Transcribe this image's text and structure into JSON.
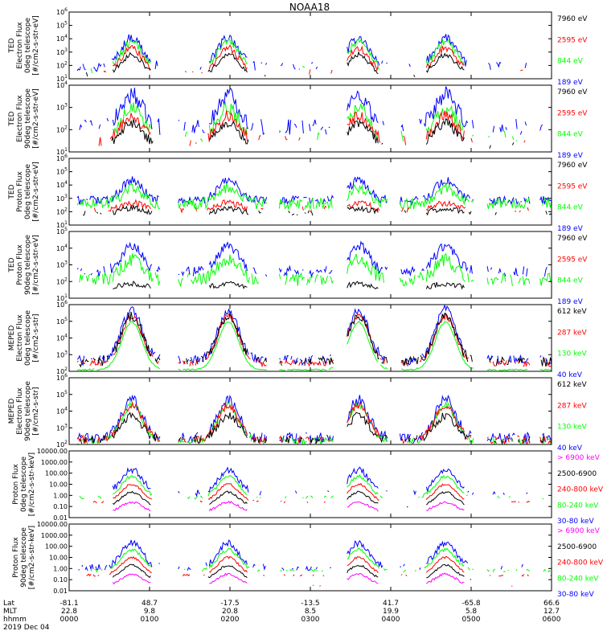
{
  "title": "NOAA18",
  "colors": {
    "black": "#000000",
    "red": "#ff0000",
    "green": "#00ff00",
    "blue": "#0000ff",
    "magenta": "#ff00ff"
  },
  "chart_data": [
    {
      "type": "line",
      "ylabel": [
        "TED",
        "Electron Flux",
        "0deg telescope",
        "[#/cm2-s-str-eV]"
      ],
      "y_ticks": [
        "10^1",
        "10^2",
        "10^3",
        "10^4",
        "10^5",
        "10^6"
      ],
      "ylim": [
        1,
        6
      ],
      "legend": [
        {
          "label": "7960 eV",
          "color": "#000000"
        },
        {
          "label": "2595 eV",
          "color": "#ff0000"
        },
        {
          "label": "844 eV",
          "color": "#00ff00"
        },
        {
          "label": "189 eV",
          "color": "#0000ff"
        }
      ],
      "series": [
        {
          "name": "189 eV",
          "color": "#0000ff",
          "base": 1.9,
          "amp": 2.2,
          "noise": 0.35,
          "fill": 0.32
        },
        {
          "name": "844 eV",
          "color": "#00ff00",
          "base": 1.7,
          "amp": 2.1,
          "noise": 0.3,
          "fill": 0.2
        },
        {
          "name": "2595 eV",
          "color": "#ff0000",
          "base": 1.5,
          "amp": 1.8,
          "noise": 0.25,
          "fill": 0.15
        },
        {
          "name": "7960 eV",
          "color": "#000000",
          "base": 1.3,
          "amp": 1.5,
          "noise": 0.2,
          "fill": 0.1
        }
      ]
    },
    {
      "type": "line",
      "ylabel": [
        "TED",
        "Electron Flux",
        "90deg telescope",
        "[#/cm2-s-str-eV]"
      ],
      "y_ticks": [
        "10^1",
        "10^2",
        "10^3",
        "10^4"
      ],
      "ylim": [
        1,
        4.5
      ],
      "legend": [
        {
          "label": "7960 eV",
          "color": "#000000"
        },
        {
          "label": "2595 eV",
          "color": "#ff0000"
        },
        {
          "label": "844 eV",
          "color": "#00ff00"
        },
        {
          "label": "189 eV",
          "color": "#0000ff"
        }
      ],
      "series": [
        {
          "name": "189 eV",
          "color": "#0000ff",
          "base": 2.3,
          "amp": 1.7,
          "noise": 0.45,
          "fill": 0.55
        },
        {
          "name": "844 eV",
          "color": "#00ff00",
          "base": 1.8,
          "amp": 1.5,
          "noise": 0.35,
          "fill": 0.25
        },
        {
          "name": "2595 eV",
          "color": "#ff0000",
          "base": 1.6,
          "amp": 1.3,
          "noise": 0.3,
          "fill": 0.2
        },
        {
          "name": "7960 eV",
          "color": "#000000",
          "base": 1.4,
          "amp": 1.1,
          "noise": 0.25,
          "fill": 0.18
        }
      ]
    },
    {
      "type": "line",
      "ylabel": [
        "TED",
        "Proton Flux",
        "0deg telescope",
        "[#/cm2-s-str-eV]"
      ],
      "y_ticks": [
        "10^1",
        "10^2",
        "10^3",
        "10^4",
        "10^5",
        "10^6"
      ],
      "ylim": [
        0,
        6
      ],
      "legend": [
        {
          "label": "7960 eV",
          "color": "#000000"
        },
        {
          "label": "2595 eV",
          "color": "#ff0000"
        },
        {
          "label": "844 eV",
          "color": "#00ff00"
        },
        {
          "label": "189 eV",
          "color": "#0000ff"
        }
      ],
      "series": [
        {
          "name": "189 eV",
          "color": "#0000ff",
          "base": 2.2,
          "amp": 1.8,
          "noise": 0.4,
          "fill": 0.9
        },
        {
          "name": "844 eV",
          "color": "#00ff00",
          "base": 1.9,
          "amp": 1.4,
          "noise": 0.5,
          "fill": 0.95
        },
        {
          "name": "2595 eV",
          "color": "#ff0000",
          "base": 1.4,
          "amp": 0.6,
          "noise": 0.3,
          "fill": 0.35
        },
        {
          "name": "7960 eV",
          "color": "#000000",
          "base": 1.1,
          "amp": 0.4,
          "noise": 0.25,
          "fill": 0.3
        }
      ]
    },
    {
      "type": "line",
      "ylabel": [
        "TED",
        "Proton Flux",
        "90deg telescope",
        "[#/cm2-s-str-eV]"
      ],
      "y_ticks": [
        "10^1",
        "10^2",
        "10^3",
        "10^4",
        "10^5"
      ],
      "ylim": [
        0,
        5
      ],
      "legend": [
        {
          "label": "7960 eV",
          "color": "#000000"
        },
        {
          "label": "2595 eV",
          "color": "#ff0000"
        },
        {
          "label": "844 eV",
          "color": "#00ff00"
        },
        {
          "label": "189 eV",
          "color": "#0000ff"
        }
      ],
      "series": [
        {
          "name": "189 eV",
          "color": "#0000ff",
          "base": 2.0,
          "amp": 1.9,
          "noise": 0.4,
          "fill": 0.7
        },
        {
          "name": "844 eV",
          "color": "#00ff00",
          "base": 1.4,
          "amp": 1.5,
          "noise": 0.5,
          "fill": 0.85
        },
        {
          "name": "7960 eV",
          "color": "#000000",
          "base": 0.8,
          "amp": 0.3,
          "noise": 0.2,
          "fill": 0.05
        }
      ]
    },
    {
      "type": "line",
      "ylabel": [
        "MEPED",
        "Electron Flux",
        "0deg telescope",
        "[#/cm2-s-str]"
      ],
      "y_ticks": [
        "10^2",
        "10^3",
        "10^4",
        "10^5",
        "10^6"
      ],
      "ylim": [
        2,
        6.2
      ],
      "legend": [
        {
          "label": "612 keV",
          "color": "#000000"
        },
        {
          "label": "287 keV",
          "color": "#ff0000"
        },
        {
          "label": "130 keV",
          "color": "#00ff00"
        },
        {
          "label": "40 keV",
          "color": "#0000ff"
        }
      ],
      "series": [
        {
          "name": "40 keV",
          "color": "#0000ff",
          "base": 2.7,
          "amp": 3.2,
          "noise": 0.3,
          "fill": 0.75
        },
        {
          "name": "130 keV",
          "color": "#00ff00",
          "base": 2.1,
          "amp": 3.0,
          "noise": 0.05,
          "fill": 0.95
        },
        {
          "name": "287 keV",
          "color": "#ff0000",
          "base": 2.5,
          "amp": 3.0,
          "noise": 0.2,
          "fill": 0.75
        },
        {
          "name": "612 keV",
          "color": "#000000",
          "base": 2.6,
          "amp": 2.9,
          "noise": 0.3,
          "fill": 0.75
        }
      ]
    },
    {
      "type": "line",
      "ylabel": [
        "MEPED",
        "Electron Flux",
        "90deg telescope",
        "[#/cm2-s-str]"
      ],
      "y_ticks": [
        "10^2",
        "10^3",
        "10^4",
        "10^5",
        "10^6"
      ],
      "ylim": [
        2,
        6.2
      ],
      "legend": [
        {
          "label": "612 keV",
          "color": "#000000"
        },
        {
          "label": "287 keV",
          "color": "#ff0000"
        },
        {
          "label": "130 keV",
          "color": "#00ff00"
        },
        {
          "label": "40 keV",
          "color": "#0000ff"
        }
      ],
      "series": [
        {
          "name": "40 keV",
          "color": "#0000ff",
          "base": 2.4,
          "amp": 2.4,
          "noise": 0.35,
          "fill": 0.8
        },
        {
          "name": "130 keV",
          "color": "#00ff00",
          "base": 2.2,
          "amp": 2.3,
          "noise": 0.2,
          "fill": 0.8
        },
        {
          "name": "287 keV",
          "color": "#ff0000",
          "base": 2.3,
          "amp": 2.2,
          "noise": 0.25,
          "fill": 0.7
        },
        {
          "name": "612 keV",
          "color": "#000000",
          "base": 2.3,
          "amp": 1.5,
          "noise": 0.25,
          "fill": 0.6
        }
      ]
    },
    {
      "type": "line",
      "ylabel": [
        "Proton Flux",
        "0deg telescope",
        "[#/cm2-s-str-keV]"
      ],
      "y_ticks": [
        "0.01",
        "0.10",
        "1.00",
        "10.00",
        "100.00",
        "1000.00",
        "10000.00"
      ],
      "ylim": [
        -2,
        4
      ],
      "legend": [
        {
          "label": "> 6900 keV",
          "color": "#ff00ff"
        },
        {
          "label": "2500-6900",
          "color": "#000000"
        },
        {
          "label": "240-800 keV",
          "color": "#ff0000"
        },
        {
          "label": "80-240 keV",
          "color": "#00ff00"
        },
        {
          "label": "30-80 keV",
          "color": "#0000ff"
        }
      ],
      "series": [
        {
          "name": "30-80 keV",
          "color": "#0000ff",
          "base": 0.2,
          "amp": 2.1,
          "noise": 0.3,
          "fill": 0.3
        },
        {
          "name": "80-240 keV",
          "color": "#00ff00",
          "base": -0.2,
          "amp": 1.9,
          "noise": 0.15,
          "fill": 0.4
        },
        {
          "name": "240-800 keV",
          "color": "#ff0000",
          "base": -0.6,
          "amp": 1.6,
          "noise": 0.1,
          "fill": 0.35
        },
        {
          "name": "2500-6900",
          "color": "#000000",
          "base": -1.0,
          "amp": 1.3,
          "noise": 0.1,
          "fill": 0.05
        },
        {
          "name": "> 6900 keV",
          "color": "#ff00ff",
          "base": -1.5,
          "amp": 0.9,
          "noise": 0.1,
          "fill": 0.05
        }
      ]
    },
    {
      "type": "line",
      "ylabel": [
        "Proton Flux",
        "90deg telescope",
        "[#/cm2-s-str-keV]"
      ],
      "y_ticks": [
        "0.01",
        "0.10",
        "1.00",
        "10.00",
        "100.00",
        "1000.00",
        "10000.00"
      ],
      "ylim": [
        -2,
        4
      ],
      "legend": [
        {
          "label": "> 6900 keV",
          "color": "#ff00ff"
        },
        {
          "label": "2500-6900",
          "color": "#000000"
        },
        {
          "label": "240-800 keV",
          "color": "#ff0000"
        },
        {
          "label": "80-240 keV",
          "color": "#00ff00"
        },
        {
          "label": "30-80 keV",
          "color": "#0000ff"
        }
      ],
      "series": [
        {
          "name": "30-80 keV",
          "color": "#0000ff",
          "base": 0.1,
          "amp": 2.2,
          "noise": 0.3,
          "fill": 0.45
        },
        {
          "name": "80-240 keV",
          "color": "#00ff00",
          "base": -0.2,
          "amp": 1.9,
          "noise": 0.15,
          "fill": 0.45
        },
        {
          "name": "240-800 keV",
          "color": "#ff0000",
          "base": -0.6,
          "amp": 1.6,
          "noise": 0.1,
          "fill": 0.4
        },
        {
          "name": "2500-6900",
          "color": "#000000",
          "base": -1.0,
          "amp": 1.3,
          "noise": 0.1,
          "fill": 0.1
        },
        {
          "name": "> 6900 keV",
          "color": "#ff00ff",
          "base": -1.5,
          "amp": 1.0,
          "noise": 0.1,
          "fill": 0.1
        }
      ]
    }
  ],
  "x_axis": {
    "rows": [
      {
        "label": "Lat",
        "values": [
          "-81.1",
          "48.7",
          "-17.5",
          "-13.5",
          "41.7",
          "-65.8",
          "66.6"
        ]
      },
      {
        "label": "MLT",
        "values": [
          "22.8",
          "9.8",
          "20.8",
          "8.5",
          "19.9",
          "5.8",
          "12.7"
        ]
      },
      {
        "label": "hhmm",
        "values": [
          "0000",
          "0100",
          "0200",
          "0300",
          "0400",
          "0500",
          "0600"
        ]
      }
    ],
    "date": "2019 Dec 04",
    "peaks": [
      0.13,
      0.33,
      0.6,
      0.78
    ],
    "gaps": [
      [
        0.0,
        0.015
      ],
      [
        0.19,
        0.225
      ],
      [
        0.41,
        0.435
      ],
      [
        0.55,
        0.575
      ],
      [
        0.66,
        0.685
      ],
      [
        0.84,
        0.865
      ],
      [
        0.955,
        0.975
      ]
    ]
  }
}
